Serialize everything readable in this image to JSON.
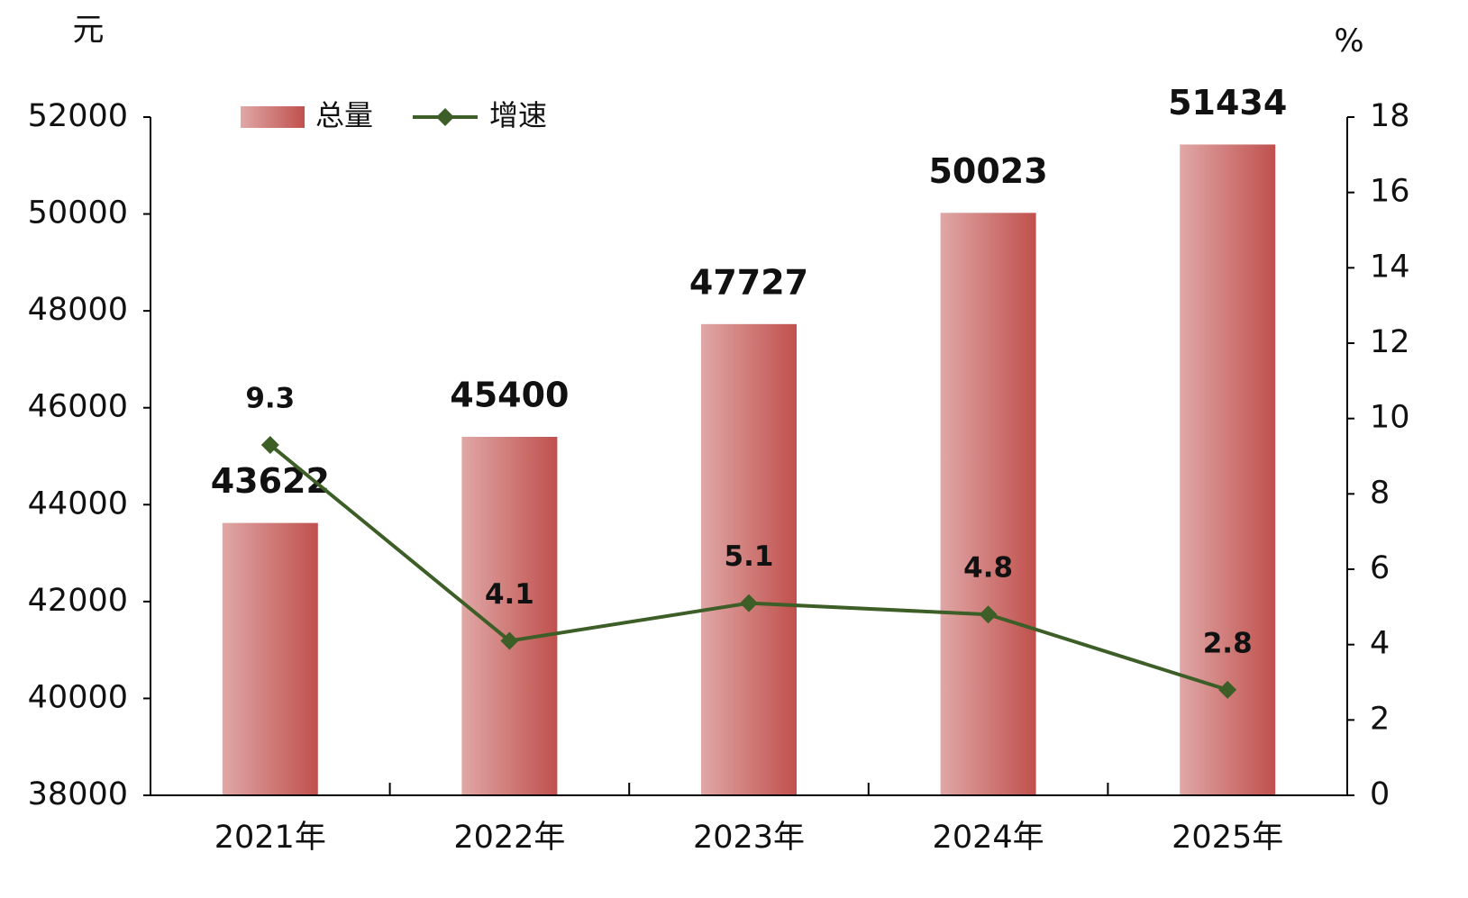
{
  "chart_data": {
    "type": "bar-line",
    "y_unit": "元",
    "y2_unit": "%",
    "categories": [
      "2021年",
      "2022年",
      "2023年",
      "2024年",
      "2025年"
    ],
    "series": [
      {
        "name": "总量",
        "type": "bar",
        "color": "#c0504d",
        "values": [
          43622,
          45400,
          47727,
          50023,
          51434
        ]
      },
      {
        "name": "增速",
        "type": "line",
        "axis": "y2",
        "color": "#3d5e27",
        "values": [
          9.3,
          4.1,
          5.1,
          4.8,
          2.8
        ]
      }
    ],
    "ylim": [
      38000,
      52000
    ],
    "yticks": [
      38000,
      40000,
      42000,
      44000,
      46000,
      48000,
      50000,
      52000
    ],
    "y2lim": [
      0,
      18
    ],
    "y2ticks": [
      0,
      2,
      4,
      6,
      8,
      10,
      12,
      14,
      16,
      18
    ],
    "legend": "top-left"
  }
}
